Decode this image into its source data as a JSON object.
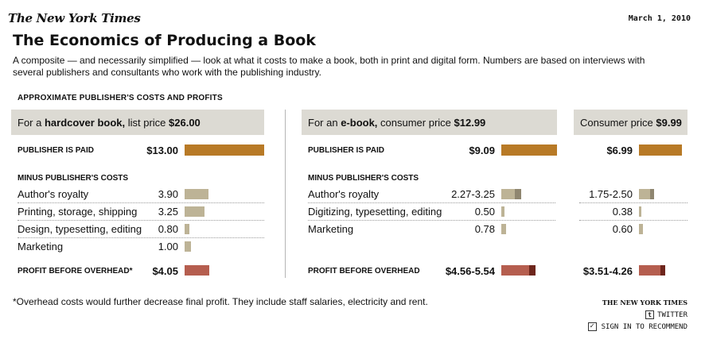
{
  "header": {
    "logo": "The New York Times",
    "date": "March 1, 2010"
  },
  "title": "The Economics of Producing a Book",
  "description": "A composite — and necessarily simplified — look at what it costs to make a book, both in print and digital form. Numbers are based on interviews with several publishers and consultants who work with the publishing industry.",
  "section_label": "APPROXIMATE PUBLISHER'S COSTS AND PROFITS",
  "columns": {
    "hardcover": {
      "prefix": "For a ",
      "bold": "hardcover book,",
      "suffix": " list price ",
      "price": "$26.00"
    },
    "ebook": {
      "prefix": "For an ",
      "bold": "e-book,",
      "suffix": " consumer price ",
      "price": "$12.99"
    },
    "ebook999": {
      "prefix": "Consumer price ",
      "price": "$9.99"
    }
  },
  "labels": {
    "publisher_paid": "PUBLISHER IS PAID",
    "minus_costs": "MINUS PUBLISHER'S COSTS",
    "profit_hardcover": "PROFIT BEFORE OVERHEAD*",
    "profit_ebook": "PROFIT BEFORE OVERHEAD"
  },
  "colors": {
    "paid": "#b87a26",
    "cost": "#bdb396",
    "cost_dark": "#8f8670",
    "profit": "#b55e4f",
    "profit_dark": "#6e261c"
  },
  "chart_data": [
    {
      "type": "bar",
      "title": "For a hardcover book, list price $26.00",
      "scale_max": 13.0,
      "publisher_paid": {
        "label": "$13.00",
        "value": 13.0
      },
      "costs": [
        {
          "name": "Author's royalty",
          "label": "3.90",
          "low": 3.9,
          "high": 3.9
        },
        {
          "name": "Printing, storage, shipping",
          "label": "3.25",
          "low": 3.25,
          "high": 3.25
        },
        {
          "name": "Design, typesetting, editing",
          "label": "0.80",
          "low": 0.8,
          "high": 0.8
        },
        {
          "name": "Marketing",
          "label": "1.00",
          "low": 1.0,
          "high": 1.0
        }
      ],
      "profit": {
        "label": "$4.05",
        "low": 4.05,
        "high": 4.05
      }
    },
    {
      "type": "bar",
      "title": "For an e-book, consumer price $12.99",
      "scale_max": 9.09,
      "publisher_paid": {
        "label": "$9.09",
        "value": 9.09
      },
      "costs": [
        {
          "name": "Author's royalty",
          "label": "2.27-3.25",
          "low": 2.27,
          "high": 3.25
        },
        {
          "name": "Digitizing, typesetting, editing",
          "label": "0.50",
          "low": 0.5,
          "high": 0.5
        },
        {
          "name": "Marketing",
          "label": "0.78",
          "low": 0.78,
          "high": 0.78
        }
      ],
      "profit": {
        "label": "$4.56-5.54",
        "low": 4.56,
        "high": 5.54
      }
    },
    {
      "type": "bar",
      "title": "Consumer price $9.99",
      "scale_max": 6.99,
      "publisher_paid": {
        "label": "$6.99",
        "value": 6.99
      },
      "costs": [
        {
          "name": "",
          "label": "1.75-2.50",
          "low": 1.75,
          "high": 2.5
        },
        {
          "name": "",
          "label": "0.38",
          "low": 0.38,
          "high": 0.38
        },
        {
          "name": "",
          "label": "0.60",
          "low": 0.6,
          "high": 0.6
        }
      ],
      "profit": {
        "label": "$3.51-4.26",
        "low": 3.51,
        "high": 4.26
      }
    }
  ],
  "footnote": "*Overhead costs would further decrease final profit. They include staff salaries, electricity and rent.",
  "footer": {
    "credit": "THE NEW YORK TIMES",
    "twitter": "TWITTER",
    "twitter_icon_glyph": "t",
    "recommend": "SIGN IN TO RECOMMEND",
    "check_glyph": "✓"
  }
}
